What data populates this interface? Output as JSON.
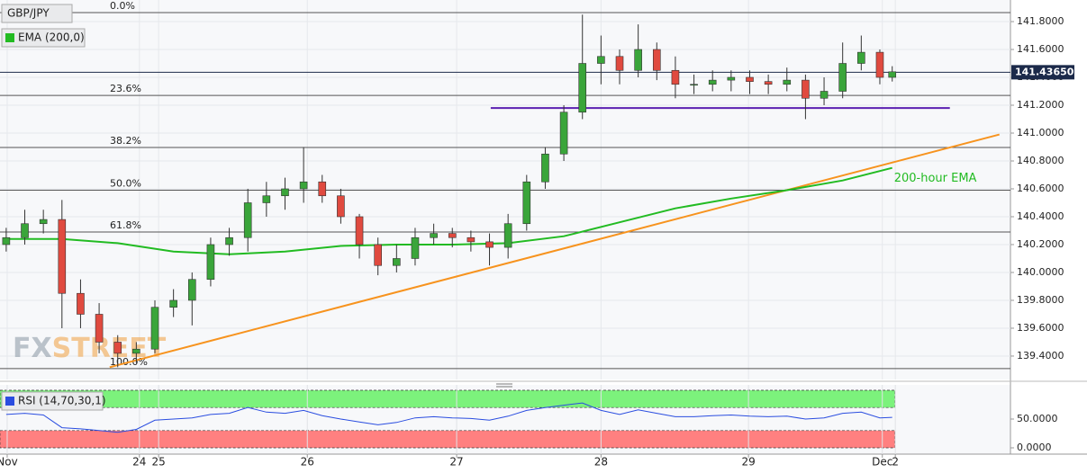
{
  "chart_data": [
    {
      "type": "candlestick",
      "title": "GBP/JPY",
      "x": [
        0,
        3,
        6,
        9,
        12,
        15,
        18,
        21,
        24,
        27,
        30,
        33,
        36,
        39,
        42,
        45,
        48,
        51,
        54,
        57,
        60,
        63,
        66,
        69,
        72,
        75,
        78,
        81,
        84,
        87,
        90,
        93,
        96,
        99,
        102,
        105,
        108,
        111,
        114,
        117,
        120,
        123,
        126,
        129,
        132,
        135,
        138,
        141,
        143
      ],
      "open": [
        140.2,
        140.25,
        140.35,
        140.38,
        139.85,
        139.7,
        139.5,
        139.42,
        139.45,
        139.75,
        139.8,
        139.95,
        140.2,
        140.25,
        140.5,
        140.55,
        140.6,
        140.65,
        140.55,
        140.4,
        140.2,
        140.05,
        140.1,
        140.25,
        140.28,
        140.25,
        140.22,
        140.18,
        140.35,
        140.65,
        140.85,
        141.15,
        141.5,
        141.55,
        141.45,
        141.6,
        141.45,
        141.35,
        141.35,
        141.38,
        141.4,
        141.37,
        141.35,
        141.38,
        141.25,
        141.3,
        141.5,
        141.58,
        141.4
      ],
      "high": [
        140.32,
        140.45,
        140.45,
        140.52,
        139.95,
        139.78,
        139.55,
        139.5,
        139.8,
        139.88,
        140.0,
        140.25,
        140.32,
        140.6,
        140.65,
        140.68,
        140.9,
        140.7,
        140.6,
        140.42,
        140.25,
        140.2,
        140.32,
        140.35,
        140.32,
        140.3,
        140.28,
        140.42,
        140.7,
        140.9,
        141.2,
        141.85,
        141.7,
        141.6,
        141.78,
        141.65,
        141.55,
        141.42,
        141.45,
        141.45,
        141.45,
        141.42,
        141.47,
        141.42,
        141.4,
        141.65,
        141.7,
        141.6,
        141.48
      ],
      "low": [
        140.15,
        140.2,
        140.28,
        139.6,
        139.6,
        139.42,
        139.32,
        139.35,
        139.42,
        139.68,
        139.62,
        139.9,
        140.12,
        140.15,
        140.4,
        140.45,
        140.5,
        140.5,
        140.35,
        140.1,
        139.98,
        140.0,
        140.05,
        140.2,
        140.18,
        140.15,
        140.05,
        140.1,
        140.3,
        140.6,
        140.8,
        141.1,
        141.35,
        141.35,
        141.4,
        141.38,
        141.25,
        141.28,
        141.3,
        141.3,
        141.28,
        141.28,
        141.3,
        141.1,
        141.2,
        141.25,
        141.45,
        141.35,
        141.37
      ],
      "close": [
        140.25,
        140.35,
        140.38,
        139.85,
        139.7,
        139.5,
        139.42,
        139.45,
        139.75,
        139.8,
        139.95,
        140.2,
        140.25,
        140.5,
        140.55,
        140.6,
        140.65,
        140.55,
        140.4,
        140.2,
        140.05,
        140.1,
        140.25,
        140.28,
        140.25,
        140.22,
        140.18,
        140.35,
        140.65,
        140.85,
        141.15,
        141.5,
        141.55,
        141.45,
        141.6,
        141.45,
        141.35,
        141.35,
        141.38,
        141.4,
        141.37,
        141.35,
        141.38,
        141.25,
        141.3,
        141.5,
        141.58,
        141.4,
        141.44
      ],
      "up_color": "#3aa53a",
      "down_color": "#e04a3f",
      "xlim": [
        -1,
        162.08
      ],
      "ylim": [
        139.232,
        141.955
      ],
      "yticks": [
        {
          "value": 139.4,
          "label": "139.4000"
        },
        {
          "value": 139.6,
          "label": "139.6000"
        },
        {
          "value": 139.8,
          "label": "139.8000"
        },
        {
          "value": 140.0,
          "label": "140.0000"
        },
        {
          "value": 140.2,
          "label": "140.2000"
        },
        {
          "value": 140.4,
          "label": "140.4000"
        },
        {
          "value": 140.6,
          "label": "140.6000"
        },
        {
          "value": 140.8,
          "label": "140.8000"
        },
        {
          "value": 141.0,
          "label": "141.0000"
        },
        {
          "value": 141.2,
          "label": "141.2000"
        },
        {
          "value": 141.4,
          "label": "141.4000"
        },
        {
          "value": 141.6,
          "label": "141.6000"
        },
        {
          "value": 141.8,
          "label": "141.8000"
        }
      ],
      "grid": true,
      "current_price": {
        "value": 141.4365,
        "label": "141.43650"
      },
      "indicators": [
        {
          "name": "EMA (200,0)",
          "annotation": "200-hour EMA",
          "color": "#22bb22",
          "x": [
            0,
            9,
            18,
            27,
            36,
            45,
            54,
            63,
            72,
            81,
            90,
            99,
            108,
            117,
            126,
            135,
            143
          ],
          "values": [
            140.24,
            140.24,
            140.21,
            140.15,
            140.13,
            140.15,
            140.19,
            140.2,
            140.2,
            140.21,
            140.26,
            140.36,
            140.46,
            140.53,
            140.59,
            140.66,
            140.75
          ]
        }
      ],
      "trendlines": [
        {
          "color": "#f7931e",
          "x": [
            16.7,
            160.3
          ],
          "values": [
            139.32,
            140.99
          ]
        },
        {
          "color": "#5b1fb0",
          "x": [
            78.2,
            152.3
          ],
          "values": [
            141.18,
            141.18
          ]
        }
      ],
      "fib_levels": [
        {
          "label": "0.0%",
          "value": 141.865
        },
        {
          "label": "23.6%",
          "value": 141.27
        },
        {
          "label": "38.2%",
          "value": 140.897
        },
        {
          "label": "50.0%",
          "value": 140.59
        },
        {
          "label": "61.8%",
          "value": 140.29
        },
        {
          "label": "100.0%",
          "value": 139.31
        }
      ],
      "watermark": [
        "FX",
        "STREET"
      ]
    },
    {
      "type": "line",
      "title": "RSI (14,70,30,1)",
      "x": [
        0,
        3,
        6,
        9,
        12,
        15,
        18,
        21,
        24,
        27,
        30,
        33,
        36,
        39,
        42,
        45,
        48,
        51,
        54,
        57,
        60,
        63,
        66,
        69,
        72,
        75,
        78,
        81,
        84,
        87,
        90,
        93,
        96,
        99,
        102,
        105,
        108,
        111,
        114,
        117,
        120,
        123,
        126,
        129,
        132,
        135,
        138,
        141,
        143
      ],
      "values": [
        58,
        60,
        57,
        35,
        33,
        30,
        27,
        32,
        48,
        50,
        52,
        58,
        60,
        70,
        62,
        60,
        65,
        56,
        50,
        45,
        40,
        44,
        52,
        54,
        52,
        51,
        48,
        55,
        65,
        70,
        74,
        78,
        65,
        58,
        66,
        60,
        54,
        54,
        56,
        57,
        55,
        54,
        55,
        50,
        52,
        60,
        62,
        52,
        53
      ],
      "color": "#2a4de0",
      "xlim": [
        -1,
        162.08
      ],
      "ylim": [
        0,
        100
      ],
      "yticks": [
        {
          "value": 50,
          "label": "50.0000"
        },
        {
          "value": 0,
          "label": "0.0000"
        }
      ],
      "bands": [
        {
          "from": 70,
          "to": 100,
          "color": "#7cf27c"
        },
        {
          "from": 0,
          "to": 30,
          "color": "#ff8080"
        }
      ],
      "xticks": [
        {
          "value": 0.16,
          "label": "Nov"
        },
        {
          "value": 21.5,
          "label": "24"
        },
        {
          "value": 24.6,
          "label": "25"
        },
        {
          "value": 48.6,
          "label": "26"
        },
        {
          "value": 72.7,
          "label": "27"
        },
        {
          "value": 96,
          "label": "28"
        },
        {
          "value": 119.8,
          "label": "29"
        },
        {
          "value": 141.4,
          "label": "Dec"
        },
        {
          "value": 143.5,
          "label": "2"
        }
      ]
    }
  ]
}
